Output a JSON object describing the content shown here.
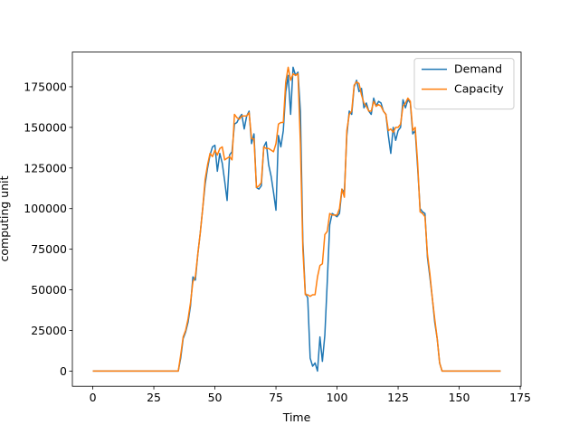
{
  "chart_data": {
    "type": "line",
    "xlabel": "Time",
    "ylabel": "computing unit",
    "x": [
      0,
      1,
      2,
      3,
      4,
      5,
      6,
      7,
      8,
      9,
      10,
      11,
      12,
      13,
      14,
      15,
      16,
      17,
      18,
      19,
      20,
      21,
      22,
      23,
      24,
      25,
      26,
      27,
      28,
      29,
      30,
      31,
      32,
      33,
      34,
      35,
      36,
      37,
      38,
      39,
      40,
      41,
      42,
      43,
      44,
      45,
      46,
      47,
      48,
      49,
      50,
      51,
      52,
      53,
      54,
      55,
      56,
      57,
      58,
      59,
      60,
      61,
      62,
      63,
      64,
      65,
      66,
      67,
      68,
      69,
      70,
      71,
      72,
      73,
      74,
      75,
      76,
      77,
      78,
      79,
      80,
      81,
      82,
      83,
      84,
      85,
      86,
      87,
      88,
      89,
      90,
      91,
      92,
      93,
      94,
      95,
      96,
      97,
      98,
      99,
      100,
      101,
      102,
      103,
      104,
      105,
      106,
      107,
      108,
      109,
      110,
      111,
      112,
      113,
      114,
      115,
      116,
      117,
      118,
      119,
      120,
      121,
      122,
      123,
      124,
      125,
      126,
      127,
      128,
      129,
      130,
      131,
      132,
      133,
      134,
      135,
      136,
      137,
      138,
      139,
      140,
      141,
      142,
      143,
      144,
      145,
      146,
      147,
      148,
      149,
      150,
      151,
      152,
      153,
      154,
      155,
      156,
      157,
      158,
      159,
      160,
      161,
      162,
      163,
      164,
      165,
      166,
      167
    ],
    "series": [
      {
        "name": "Demand",
        "color": "#1f77b4",
        "values": [
          0,
          0,
          0,
          0,
          0,
          0,
          0,
          0,
          0,
          0,
          0,
          0,
          0,
          0,
          0,
          0,
          0,
          0,
          0,
          0,
          0,
          0,
          0,
          0,
          0,
          0,
          0,
          0,
          0,
          0,
          0,
          0,
          0,
          0,
          0,
          0,
          8000,
          20000,
          24000,
          30000,
          40000,
          58000,
          56000,
          72000,
          85000,
          100000,
          115000,
          125000,
          133000,
          138000,
          139000,
          123000,
          134000,
          128000,
          117000,
          105000,
          133000,
          135000,
          152000,
          153000,
          156000,
          158000,
          149000,
          157000,
          160000,
          140000,
          146000,
          113000,
          112000,
          114000,
          138000,
          141000,
          127000,
          120000,
          110000,
          99000,
          145000,
          138000,
          148000,
          172000,
          182000,
          158000,
          187000,
          182000,
          184000,
          160000,
          80000,
          48000,
          45000,
          8000,
          3000,
          5000,
          0,
          21000,
          6000,
          22000,
          55000,
          90000,
          97000,
          96000,
          95000,
          97000,
          112000,
          110000,
          145000,
          160000,
          158000,
          175000,
          179000,
          172000,
          174000,
          162000,
          165000,
          160000,
          158000,
          168000,
          163000,
          166000,
          165000,
          160000,
          158000,
          145000,
          134000,
          150000,
          142000,
          148000,
          150000,
          167000,
          162000,
          167000,
          165000,
          146000,
          148000,
          125000,
          100000,
          98000,
          97000,
          70000,
          58000,
          45000,
          30000,
          20000,
          5000,
          0,
          0,
          0,
          0,
          0,
          0,
          0,
          0,
          0,
          0,
          0,
          0,
          0,
          0,
          0,
          0,
          0,
          0,
          0,
          0,
          0,
          0,
          0,
          0,
          0
        ]
      },
      {
        "name": "Capacity",
        "color": "#ff7f0e",
        "values": [
          0,
          0,
          0,
          0,
          0,
          0,
          0,
          0,
          0,
          0,
          0,
          0,
          0,
          0,
          0,
          0,
          0,
          0,
          0,
          0,
          0,
          0,
          0,
          0,
          0,
          0,
          0,
          0,
          0,
          0,
          0,
          0,
          0,
          0,
          0,
          0,
          10000,
          21000,
          25000,
          32000,
          42000,
          55000,
          58000,
          72000,
          85000,
          100000,
          118000,
          127000,
          134000,
          132000,
          136000,
          133000,
          137000,
          138000,
          130000,
          131000,
          132000,
          130000,
          158000,
          156000,
          155000,
          157000,
          157000,
          157000,
          159000,
          143000,
          143000,
          113000,
          114000,
          116000,
          138000,
          137000,
          137000,
          136000,
          135000,
          140000,
          152000,
          153000,
          153000,
          178000,
          187000,
          179000,
          183000,
          182000,
          183000,
          140000,
          75000,
          47000,
          47000,
          46000,
          47000,
          47000,
          58000,
          65000,
          66000,
          84000,
          86000,
          97000,
          96000,
          96000,
          96000,
          100000,
          112000,
          107000,
          148000,
          158000,
          160000,
          176000,
          178000,
          177000,
          170000,
          165000,
          163000,
          160000,
          160000,
          166000,
          163000,
          164000,
          163000,
          160000,
          158000,
          148000,
          149000,
          147000,
          150000,
          150000,
          152000,
          163000,
          165000,
          168000,
          166000,
          148000,
          150000,
          128000,
          98000,
          97000,
          95000,
          72000,
          60000,
          45000,
          32000,
          20000,
          5000,
          0,
          0,
          0,
          0,
          0,
          0,
          0,
          0,
          0,
          0,
          0,
          0,
          0,
          0,
          0,
          0,
          0,
          0,
          0,
          0,
          0,
          0,
          0,
          0,
          0
        ]
      }
    ],
    "xlim": [
      -8.35,
      175.35
    ],
    "xticks": [
      0,
      25,
      50,
      75,
      100,
      125,
      150,
      175
    ],
    "ylim": [
      -9350,
      196350
    ],
    "yticks": [
      0,
      25000,
      50000,
      75000,
      100000,
      125000,
      150000,
      175000
    ],
    "legend": "upper right",
    "grid": false
  }
}
